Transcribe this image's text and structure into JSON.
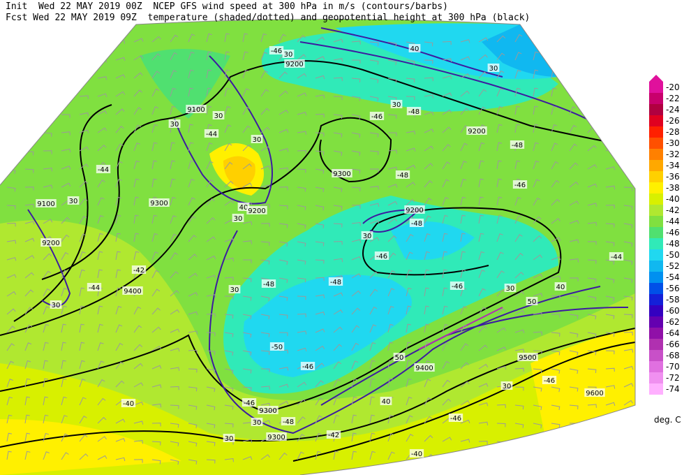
{
  "header": {
    "init": "Init  Wed 22 MAY 2019 00Z  NCEP GFS wind speed at 300 hPa in m/s (contours/barbs)",
    "fcst": "Fcst Wed 22 MAY 2019 09Z  temperature (shaded/dotted) and geopotential height at 300 hPa (black)"
  },
  "colorbar": {
    "levels": [
      -20,
      -22,
      -24,
      -26,
      -28,
      -30,
      -32,
      -34,
      -36,
      -38,
      -40,
      -42,
      -44,
      -46,
      -48,
      -50,
      -52,
      -54,
      -56,
      -58,
      -60,
      -62,
      -64,
      -66,
      -68,
      -70,
      -72,
      -74
    ],
    "colors": [
      "#e0109c",
      "#c8006c",
      "#b00040",
      "#e00020",
      "#ff2000",
      "#ff5000",
      "#ff8000",
      "#ffa800",
      "#ffd000",
      "#fff000",
      "#d8f000",
      "#b0e830",
      "#80e040",
      "#50e070",
      "#30eab8",
      "#20d8f0",
      "#10b8f0",
      "#0090f0",
      "#0050e8",
      "#1420d8",
      "#3400c0",
      "#6400b0",
      "#9010a8",
      "#b030b0",
      "#c850c8",
      "#e070e0",
      "#f090f0",
      "#ffb0ff"
    ],
    "units": "deg. C"
  },
  "map": {
    "labels": [
      "-46",
      "30",
      "9200",
      "40",
      "30",
      "9100",
      "30",
      "30",
      "-44",
      "30",
      "30",
      "-46",
      "-48",
      "9200",
      "-48",
      "-44",
      "9300",
      "-48",
      "-46",
      "9100",
      "30",
      "9300",
      "40",
      "9200",
      "30",
      "9200",
      "-48",
      "9200",
      "30",
      "-46",
      "-44",
      "-42",
      "-48",
      "-48",
      "-46",
      "30",
      "40",
      "-44",
      "9400",
      "30",
      "30",
      "50",
      "-50",
      "-46",
      "50",
      "9400",
      "9500",
      "30",
      "-46",
      "9300",
      "40",
      "-46",
      "9600",
      "-40",
      "30",
      "-48",
      "-46",
      "9300",
      "-42",
      "30",
      "-40"
    ]
  }
}
